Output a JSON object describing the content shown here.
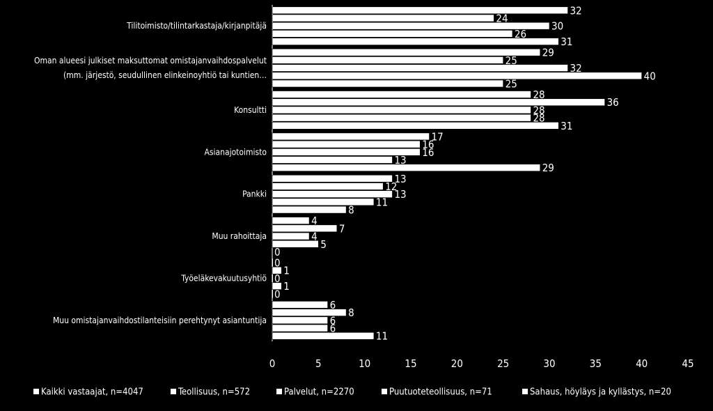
{
  "chart_data": {
    "type": "bar",
    "orientation": "horizontal",
    "categories": [
      [
        "Tilitoimisto/tilintarkastaja/kirjanpitäjä"
      ],
      [
        "Oman alueesi julkiset maksuttomat omistajanvaihdospalvelut",
        "(mm. järjestö, seudullinen elinkeinoyhtiö tai  kuntien…"
      ],
      [
        "Konsultti"
      ],
      [
        "Asianajotoimisto"
      ],
      [
        "Pankki"
      ],
      [
        "Muu rahoittaja"
      ],
      [
        "Työeläkevakuutusyhtiö"
      ],
      [
        "Muu omistajanvaihdostilanteisiin perehtynyt asiantuntija"
      ]
    ],
    "series": [
      {
        "name": "Kaikki vastaajat, n=4047",
        "values": [
          32,
          29,
          28,
          17,
          13,
          4,
          0,
          6
        ]
      },
      {
        "name": "Teollisuus, n=572",
        "values": [
          24,
          25,
          36,
          16,
          12,
          7,
          1,
          8
        ]
      },
      {
        "name": "Palvelut, n=2270",
        "values": [
          30,
          32,
          28,
          16,
          13,
          4,
          0,
          6
        ]
      },
      {
        "name": "Puutuoteteollisuus, n=71",
        "values": [
          26,
          40,
          28,
          13,
          11,
          5,
          1,
          6
        ]
      },
      {
        "name": "Sahaus, höyläys ja kyllästys, n=20",
        "values": [
          31,
          25,
          31,
          29,
          8,
          0,
          0,
          11
        ]
      }
    ],
    "xlim": [
      0,
      45
    ],
    "xticks": [
      "0",
      "5",
      "10",
      "15",
      "20",
      "25",
      "30",
      "35",
      "40",
      "45"
    ],
    "legend_position": "bottom",
    "bar_color": "#ffffff",
    "background": "#000000"
  }
}
